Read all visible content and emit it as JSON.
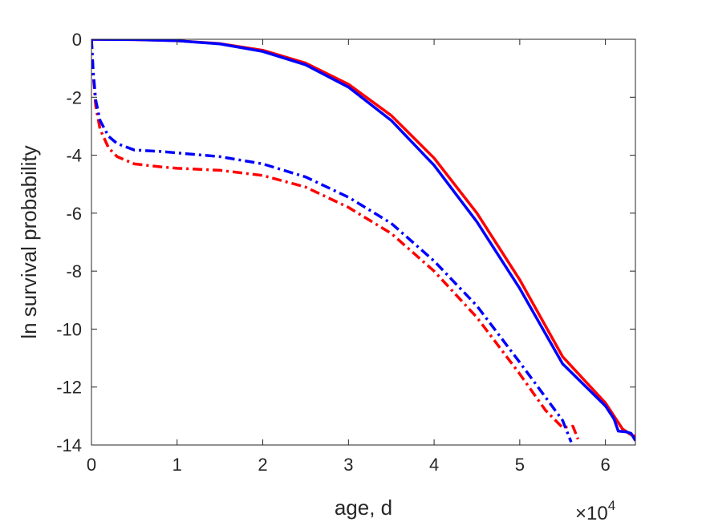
{
  "chart_data": {
    "type": "line",
    "title": "",
    "xlabel": "age, d",
    "ylabel": "ln survival probability",
    "x_exponent_label": {
      "base": "×10",
      "exponent": "4"
    },
    "xlim": [
      0,
      63500
    ],
    "ylim": [
      -14,
      0
    ],
    "xticks": [
      0,
      10000,
      20000,
      30000,
      40000,
      50000,
      60000
    ],
    "xtick_labels": [
      "0",
      "1",
      "2",
      "3",
      "4",
      "5",
      "6"
    ],
    "yticks": [
      0,
      -2,
      -4,
      -6,
      -8,
      -10,
      -12,
      -14
    ],
    "ytick_labels": [
      "0",
      "-2",
      "-4",
      "-6",
      "-8",
      "-10",
      "-12",
      "-14"
    ],
    "grid": false,
    "legend": "none",
    "series": [
      {
        "color": "#ff0000",
        "style": "solid",
        "x": [
          0,
          5000,
          10000,
          15000,
          20000,
          25000,
          30000,
          35000,
          40000,
          45000,
          50000,
          55000,
          60000,
          62000,
          63000,
          63500
        ],
        "y": [
          0,
          -0.01,
          -0.05,
          -0.15,
          -0.38,
          -0.82,
          -1.55,
          -2.63,
          -4.1,
          -6.0,
          -8.3,
          -10.95,
          -12.55,
          -13.45,
          -13.65,
          -13.7
        ]
      },
      {
        "color": "#0000ff",
        "style": "solid",
        "x": [
          0,
          5000,
          10000,
          15000,
          20000,
          25000,
          30000,
          35000,
          40000,
          45000,
          50000,
          55000,
          60000,
          61000,
          61500,
          62500,
          63000,
          63500
        ],
        "y": [
          0,
          -0.01,
          -0.05,
          -0.16,
          -0.42,
          -0.88,
          -1.65,
          -2.8,
          -4.35,
          -6.3,
          -8.6,
          -11.2,
          -12.65,
          -13.1,
          -13.52,
          -13.55,
          -13.6,
          -13.85
        ]
      },
      {
        "color": "#ff0000",
        "style": "dashdot",
        "x": [
          0,
          200,
          500,
          1000,
          2000,
          3000,
          5000,
          8000,
          10000,
          15000,
          20000,
          25000,
          30000,
          35000,
          40000,
          45000,
          50000,
          53000,
          55000,
          56200,
          56800
        ],
        "y": [
          0,
          -1.2,
          -2.3,
          -3.1,
          -3.75,
          -4.05,
          -4.3,
          -4.4,
          -4.45,
          -4.52,
          -4.7,
          -5.1,
          -5.8,
          -6.7,
          -8.0,
          -9.6,
          -11.55,
          -12.8,
          -13.4,
          -13.35,
          -13.8
        ]
      },
      {
        "color": "#0000ff",
        "style": "dashdot",
        "x": [
          0,
          200,
          500,
          1000,
          2000,
          3000,
          5000,
          8000,
          10000,
          15000,
          20000,
          25000,
          30000,
          35000,
          40000,
          45000,
          50000,
          53000,
          55000,
          56000
        ],
        "y": [
          0,
          -1.1,
          -2.1,
          -2.8,
          -3.35,
          -3.6,
          -3.82,
          -3.87,
          -3.92,
          -4.05,
          -4.3,
          -4.75,
          -5.45,
          -6.35,
          -7.65,
          -9.2,
          -11.15,
          -12.35,
          -13.15,
          -13.9
        ]
      }
    ]
  }
}
